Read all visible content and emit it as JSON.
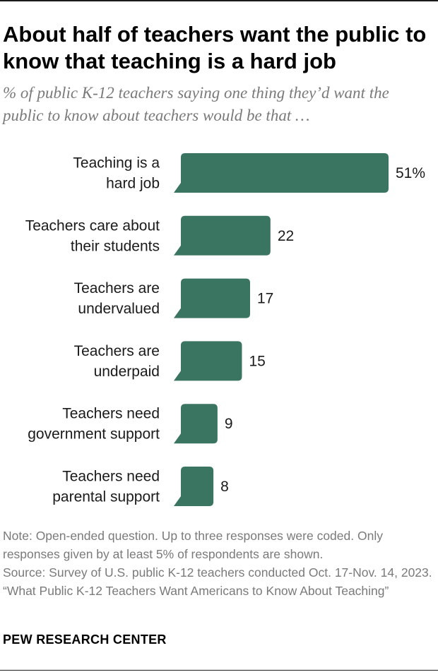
{
  "title": "About half of teachers want the public to know that teaching is a hard job",
  "subtitle": "% of public K-12 teachers saying one thing they’d want the public to know about teachers would be that …",
  "chart_data": {
    "type": "bar",
    "orientation": "horizontal",
    "categories": [
      [
        "Teaching is a",
        "hard job"
      ],
      [
        "Teachers care about",
        "their students"
      ],
      [
        "Teachers are",
        "undervalued"
      ],
      [
        "Teachers are",
        "underpaid"
      ],
      [
        "Teachers need",
        "government support"
      ],
      [
        "Teachers need",
        "parental support"
      ]
    ],
    "values": [
      51,
      22,
      17,
      15,
      9,
      8
    ],
    "value_labels": [
      "51%",
      "22",
      "17",
      "15",
      "9",
      "8"
    ],
    "bar_color": "#3a7562",
    "bar_shape": "speech-bubble",
    "xlim": [
      0,
      51
    ]
  },
  "notes": {
    "note": "Note: Open-ended question. Up to three responses were coded. Only responses given by at least 5% of respondents are shown.",
    "source": "Source: Survey of U.S. public K-12 teachers conducted Oct. 17-Nov. 14, 2023.",
    "report": "“What Public K-12 Teachers Want Americans to Know About Teaching”"
  },
  "brand": "PEW RESEARCH CENTER"
}
